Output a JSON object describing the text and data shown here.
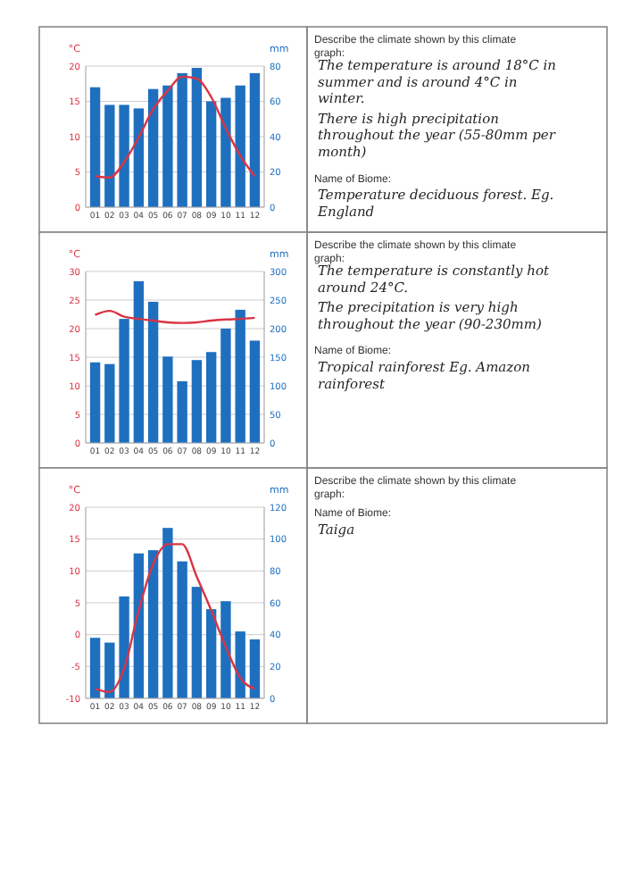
{
  "chart_data": [
    {
      "type": "bar",
      "categories": [
        "01",
        "02",
        "03",
        "04",
        "05",
        "06",
        "07",
        "08",
        "09",
        "10",
        "11",
        "12"
      ],
      "ylabel": "°C",
      "y2label": "mm",
      "ylim": [
        0,
        20
      ],
      "yticks": [
        0,
        5,
        10,
        15,
        20
      ],
      "y2lim": [
        0,
        80
      ],
      "y2ticks": [
        0,
        20,
        40,
        60,
        80
      ],
      "grid": "y",
      "series": [
        {
          "type": "bar",
          "axis": "y2",
          "color": "#1f6fbf",
          "values": [
            68,
            58,
            58,
            56,
            67,
            69,
            76,
            79,
            60,
            62,
            69,
            76
          ]
        },
        {
          "type": "line",
          "color": "#d93444",
          "values": [
            4.4,
            4.2,
            6.4,
            9.9,
            13.9,
            16.5,
            18.5,
            18.2,
            15.6,
            11.2,
            7.3,
            4.4
          ]
        }
      ]
    },
    {
      "type": "other",
      "title": "Describe the climate shown by this climate graph:",
      "annotations": [
        "The temperature is around 18°C in summer and is around 4°C in winter.",
        "There is high precipitation throughout the year (55-80mm per month)",
        "Name of Biome:",
        "Temperature deciduous forest. Eg. England"
      ]
    },
    {
      "type": "bar",
      "categories": [
        "01",
        "02",
        "03",
        "04",
        "05",
        "06",
        "07",
        "08",
        "09",
        "10",
        "11",
        "12"
      ],
      "ylabel": "°C",
      "y2label": "mm",
      "ylim": [
        0,
        30
      ],
      "yticks": [
        0,
        5,
        10,
        15,
        20,
        25,
        30
      ],
      "y2lim": [
        0,
        300
      ],
      "y2ticks": [
        0,
        50,
        100,
        150,
        200,
        250,
        300
      ],
      "grid": "y",
      "series": [
        {
          "type": "bar",
          "axis": "y2",
          "color": "#1f6fbf",
          "values": [
            141,
            138,
            217,
            283,
            247,
            151,
            108,
            145,
            159,
            200,
            233,
            179
          ]
        },
        {
          "type": "line",
          "color": "#d93444",
          "values": [
            22.4,
            23.1,
            22.1,
            21.7,
            21.4,
            21.1,
            21.0,
            21.1,
            21.4,
            21.6,
            21.7,
            21.9
          ]
        }
      ]
    },
    {
      "type": "other",
      "title": "Describe the climate shown by this climate graph:",
      "annotations": [
        "The temperature is constantly hot around 24°C.",
        "The precipitation is very high throughout the year (90-230mm)",
        "Name of Biome:",
        "Tropical rainforest Eg. Amazon rainforest"
      ]
    },
    {
      "type": "bar",
      "categories": [
        "01",
        "02",
        "03",
        "04",
        "05",
        "06",
        "07",
        "08",
        "09",
        "10",
        "11",
        "12"
      ],
      "ylabel": "°C",
      "y2label": "mm",
      "ylim": [
        -10,
        20
      ],
      "yticks": [
        -10,
        -5,
        0,
        5,
        10,
        15,
        20
      ],
      "y2lim": [
        0,
        120
      ],
      "y2ticks": [
        0,
        20,
        40,
        60,
        80,
        100,
        120
      ],
      "grid": "y",
      "series": [
        {
          "type": "bar",
          "axis": "y2",
          "color": "#1f6fbf",
          "values": [
            38,
            35,
            64,
            91,
            93,
            107,
            86,
            70,
            56,
            61,
            42,
            37
          ]
        },
        {
          "type": "line",
          "color": "#d93444",
          "values": [
            -8.5,
            -9.0,
            -5.3,
            3.8,
            11.1,
            14.2,
            14.2,
            9.1,
            3.8,
            -1.9,
            -6.8,
            -8.5
          ]
        }
      ]
    },
    {
      "type": "other",
      "title": "Describe the climate shown by this climate graph:",
      "annotations": [
        "Name of Biome:",
        "Taiga"
      ]
    }
  ]
}
